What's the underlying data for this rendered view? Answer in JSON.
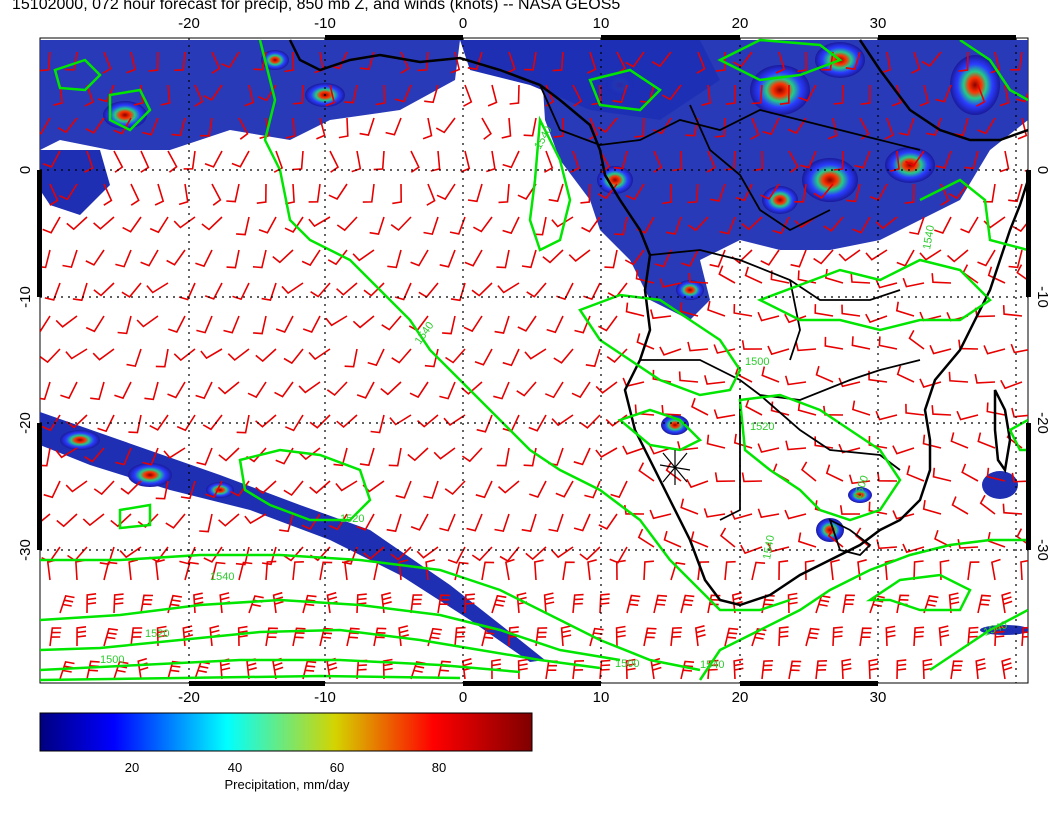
{
  "title": "15102000, 072 hour forecast for precip, 850 mb Z, and winds (knots) -- NASA GEOS5",
  "axes": {
    "lon_ticks": [
      "-20",
      "-10",
      "0",
      "10",
      "20",
      "30"
    ],
    "lat_ticks": [
      "0",
      "-10",
      "-20",
      "-30"
    ]
  },
  "contour_labels": [
    "1540",
    "1540",
    "1500",
    "1520",
    "1500",
    "1500",
    "1520",
    "1540",
    "1540",
    "1520",
    "1540",
    "1540",
    "1500",
    "1540"
  ],
  "colorbar": {
    "ticks": [
      "20",
      "40",
      "60",
      "80"
    ],
    "label": "Precipitation, mm/day",
    "colors": [
      "#00007f",
      "#0000ff",
      "#00ffff",
      "#ffff00",
      "#ff0000",
      "#7f0000"
    ]
  },
  "colors": {
    "contour": "#00e600",
    "wind": "#e60000",
    "coast": "#000000",
    "precip_low": "#1a1aa8",
    "precip_high": "#8b0000"
  }
}
